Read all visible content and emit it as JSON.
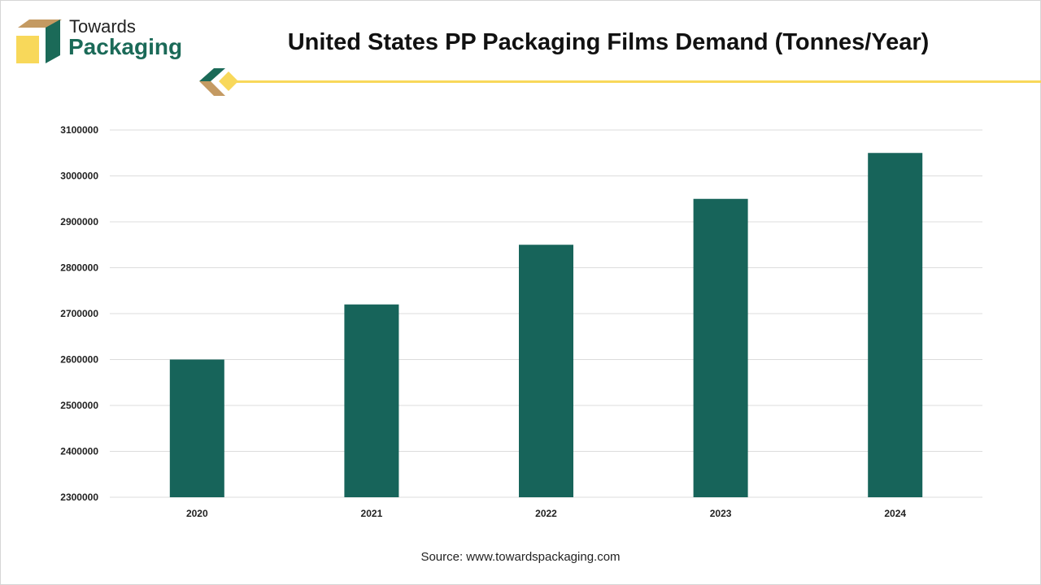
{
  "brand": {
    "line1": "Towards",
    "line2": "Packaging"
  },
  "source": "Source: www.towardspackaging.com",
  "colors": {
    "bar": "#17645a",
    "accent": "#f8d85a",
    "brand_green": "#1b6a58",
    "brand_tan": "#c49a62"
  },
  "chart_data": {
    "type": "bar",
    "title": "United States PP Packaging Films Demand (Tonnes/Year)",
    "categories": [
      "2020",
      "2021",
      "2022",
      "2023",
      "2024"
    ],
    "values": [
      2600000,
      2720000,
      2850000,
      2950000,
      3050000
    ],
    "xlabel": "",
    "ylabel": "",
    "ylim": [
      2300000,
      3100000
    ],
    "yticks": [
      2300000,
      2400000,
      2500000,
      2600000,
      2700000,
      2800000,
      2900000,
      3000000,
      3100000
    ],
    "grid": true,
    "legend": "none"
  }
}
